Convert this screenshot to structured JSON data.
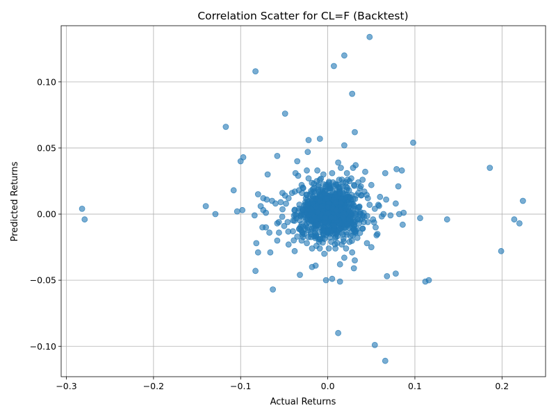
{
  "chart_data": {
    "type": "scatter",
    "title": "Correlation Scatter for CL=F (Backtest)",
    "xlabel": "Actual Returns",
    "ylabel": "Predicted Returns",
    "xlim": [
      -0.306,
      0.25
    ],
    "ylim": [
      -0.123,
      0.1425
    ],
    "xticks": [
      -0.3,
      -0.2,
      -0.1,
      0.0,
      0.1,
      0.2
    ],
    "xtick_labels": [
      "−0.3",
      "−0.2",
      "−0.1",
      "0.0",
      "0.1",
      "0.2"
    ],
    "yticks": [
      -0.1,
      -0.05,
      0.0,
      0.05,
      0.1
    ],
    "ytick_labels": [
      "−0.10",
      "−0.05",
      "0.00",
      "0.05",
      "0.10"
    ],
    "grid": true,
    "series": [
      {
        "name": "Backtest",
        "color": "#1f77b4",
        "points": [
          [
            0.048,
            0.134
          ],
          [
            0.019,
            0.12
          ],
          [
            0.007,
            0.112
          ],
          [
            -0.083,
            0.108
          ],
          [
            0.028,
            0.091
          ],
          [
            -0.049,
            0.076
          ],
          [
            -0.117,
            0.066
          ],
          [
            0.031,
            0.062
          ],
          [
            -0.009,
            0.057
          ],
          [
            -0.022,
            0.056
          ],
          [
            0.098,
            0.054
          ],
          [
            0.019,
            0.052
          ],
          [
            -0.023,
            0.047
          ],
          [
            -0.097,
            0.043
          ],
          [
            -0.1,
            0.04
          ],
          [
            -0.058,
            0.044
          ],
          [
            0.012,
            0.039
          ],
          [
            -0.035,
            0.04
          ],
          [
            0.079,
            0.034
          ],
          [
            0.085,
            0.033
          ],
          [
            0.186,
            0.035
          ],
          [
            0.066,
            0.031
          ],
          [
            -0.069,
            0.03
          ],
          [
            -0.108,
            0.018
          ],
          [
            0.081,
            0.021
          ],
          [
            -0.14,
            0.006
          ],
          [
            -0.282,
            0.004
          ],
          [
            -0.279,
            -0.004
          ],
          [
            -0.129,
            0.0
          ],
          [
            -0.104,
            0.002
          ],
          [
            -0.098,
            0.003
          ],
          [
            -0.08,
            0.015
          ],
          [
            0.224,
            0.01
          ],
          [
            0.214,
            -0.004
          ],
          [
            0.22,
            -0.007
          ],
          [
            0.199,
            -0.028
          ],
          [
            0.137,
            -0.004
          ],
          [
            0.106,
            -0.003
          ],
          [
            0.086,
            -0.008
          ],
          [
            0.116,
            -0.05
          ],
          [
            0.112,
            -0.051
          ],
          [
            0.078,
            -0.045
          ],
          [
            0.068,
            -0.047
          ],
          [
            0.054,
            -0.099
          ],
          [
            0.066,
            -0.111
          ],
          [
            0.012,
            -0.09
          ],
          [
            0.014,
            -0.051
          ],
          [
            0.005,
            -0.049
          ],
          [
            -0.002,
            -0.05
          ],
          [
            -0.032,
            -0.046
          ],
          [
            -0.063,
            -0.057
          ],
          [
            -0.083,
            -0.043
          ],
          [
            -0.018,
            -0.04
          ],
          [
            -0.014,
            -0.039
          ],
          [
            0.03,
            -0.041
          ],
          [
            0.031,
            -0.035
          ],
          [
            0.014,
            -0.038
          ],
          [
            -0.08,
            -0.029
          ],
          [
            -0.066,
            -0.029
          ],
          [
            -0.082,
            -0.022
          ],
          [
            -0.058,
            -0.02
          ],
          [
            -0.045,
            -0.023
          ],
          [
            -0.038,
            -0.028
          ],
          [
            -0.013,
            -0.024
          ],
          [
            0.05,
            -0.025
          ],
          [
            0.019,
            -0.033
          ],
          [
            0.021,
            -0.026
          ],
          [
            0.056,
            -0.016
          ],
          [
            0.045,
            -0.022
          ],
          [
            0.028,
            -0.029
          ],
          [
            0.055,
            -0.01
          ],
          [
            0.072,
            -0.001
          ],
          [
            0.082,
            0.0
          ],
          [
            0.087,
            0.001
          ],
          [
            0.078,
            0.008
          ],
          [
            0.06,
            0.013
          ],
          [
            0.067,
            0.011
          ],
          [
            0.058,
            0.007
          ],
          [
            0.05,
            0.022
          ],
          [
            0.043,
            0.032
          ],
          [
            0.04,
            0.026
          ],
          [
            0.032,
            0.037
          ],
          [
            0.029,
            0.035
          ],
          [
            0.022,
            0.031
          ],
          [
            0.015,
            0.035
          ],
          [
            0.005,
            0.031
          ],
          [
            -0.005,
            0.03
          ],
          [
            -0.012,
            0.033
          ],
          [
            -0.024,
            0.033
          ],
          [
            -0.034,
            0.029
          ],
          [
            -0.037,
            0.031
          ],
          [
            -0.052,
            0.016
          ],
          [
            -0.06,
            0.008
          ],
          [
            -0.064,
            0.01
          ],
          [
            -0.07,
            0.011
          ],
          [
            -0.074,
            0.012
          ],
          [
            -0.077,
            0.006
          ],
          [
            -0.074,
            0.003
          ],
          [
            -0.071,
            0.001
          ],
          [
            -0.084,
            -0.001
          ],
          [
            -0.075,
            -0.01
          ],
          [
            -0.071,
            -0.01
          ],
          [
            -0.067,
            -0.014
          ],
          [
            -0.056,
            -0.014
          ],
          [
            -0.058,
            -0.007
          ],
          [
            -0.05,
            -0.009
          ],
          [
            -0.046,
            -0.006
          ],
          [
            -0.04,
            -0.013
          ],
          [
            -0.035,
            -0.017
          ],
          [
            -0.03,
            -0.02
          ],
          [
            -0.027,
            -0.015
          ],
          [
            -0.024,
            -0.022
          ],
          [
            -0.018,
            -0.026
          ],
          [
            -0.01,
            -0.021
          ],
          [
            -0.004,
            -0.03
          ],
          [
            0.004,
            -0.021
          ],
          [
            0.01,
            -0.015
          ],
          [
            0.016,
            -0.023
          ],
          [
            0.025,
            -0.021
          ],
          [
            0.034,
            -0.018
          ],
          [
            0.04,
            -0.011
          ],
          [
            0.046,
            -0.006
          ],
          [
            0.052,
            -0.004
          ],
          [
            0.057,
            -0.015
          ],
          [
            0.064,
            0.0
          ],
          [
            0.054,
            0.004
          ],
          [
            0.048,
            0.007
          ],
          [
            0.046,
            0.012
          ],
          [
            0.042,
            0.017
          ],
          [
            0.038,
            0.021
          ],
          [
            0.035,
            0.024
          ],
          [
            0.027,
            0.027
          ],
          [
            0.021,
            0.024
          ],
          [
            0.013,
            0.026
          ],
          [
            0.006,
            0.024
          ],
          [
            -0.002,
            0.022
          ],
          [
            -0.009,
            0.026
          ],
          [
            -0.016,
            0.023
          ],
          [
            -0.022,
            0.027
          ],
          [
            -0.03,
            0.022
          ],
          [
            -0.033,
            0.018
          ],
          [
            -0.041,
            0.016
          ],
          [
            -0.045,
            0.012
          ],
          [
            -0.049,
            0.014
          ],
          [
            -0.054,
            0.009
          ]
        ]
      }
    ]
  }
}
